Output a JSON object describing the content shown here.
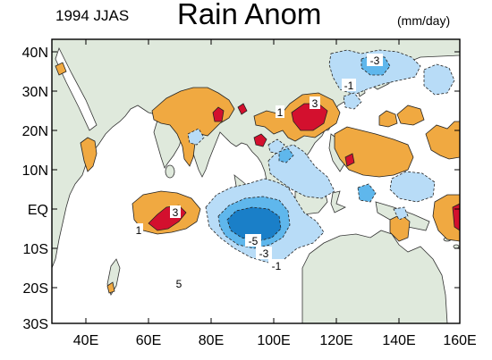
{
  "header": {
    "season": "1994 JJAS",
    "title": "Rain Anom",
    "units": "(mm/day)"
  },
  "axes": {
    "lat_labels": [
      "40N",
      "30N",
      "20N",
      "10N",
      "EQ",
      "10S",
      "20S",
      "30S"
    ],
    "lon_labels": [
      "40E",
      "60E",
      "80E",
      "100E",
      "120E",
      "140E",
      "160E"
    ]
  },
  "contour_labels": {
    "pos_3_bay": "3",
    "pos_1_bay": "1",
    "pos_3_ind": "3",
    "pos_1_ind": "1",
    "neg_3_japan": "-3",
    "neg_1_japan": "-1",
    "neg_5_io": "-5",
    "neg_3_io": "-3",
    "neg_1_io": "-1",
    "stray_5": "5"
  },
  "colors": {
    "ocean": "#ffffff",
    "land": "#dfe9dc",
    "pos_light": "#f0a941",
    "pos_dark": "#d3102e",
    "neg_light": "#b8dcf7",
    "neg_mid": "#5fb7ec",
    "neg_dark": "#1a7fc8"
  }
}
